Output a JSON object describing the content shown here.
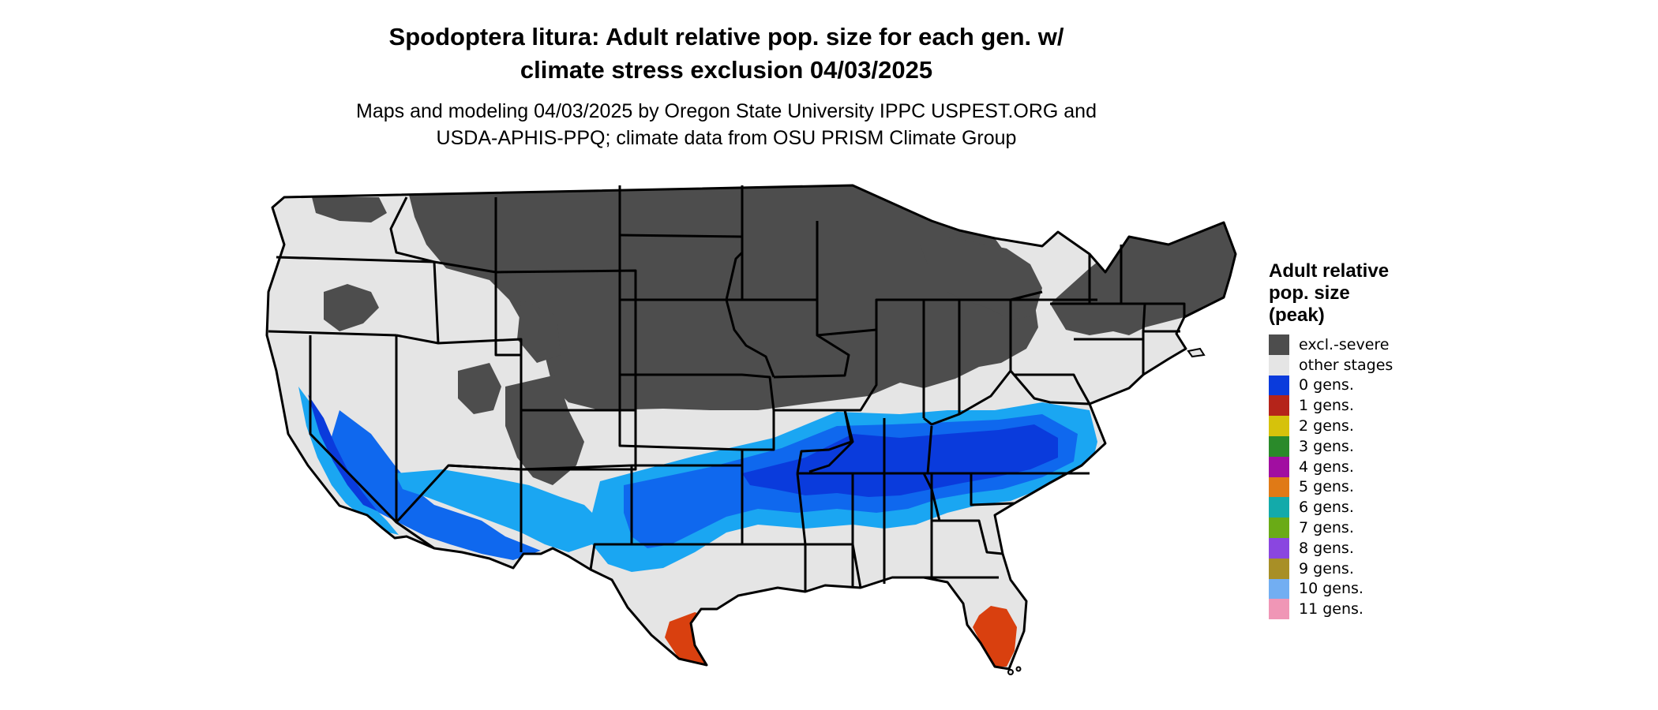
{
  "title_line1": "Spodoptera litura: Adult relative pop. size for each gen. w/",
  "title_line2": "climate stress exclusion 04/03/2025",
  "subtitle_line1": "Maps and modeling 04/03/2025 by Oregon State University IPPC USPEST.ORG and",
  "subtitle_line2": "USDA-APHIS-PPQ; climate data from OSU PRISM Climate Group",
  "legend": {
    "title_lines": [
      "Adult relative",
      "pop. size",
      "(peak)"
    ],
    "items": [
      {
        "label": "excl.-severe",
        "color": "#4d4d4d"
      },
      {
        "label": "other stages",
        "color": "#e5e5e5"
      },
      {
        "label": "0 gens.",
        "color": "#0a3bdc"
      },
      {
        "label": "1 gens.",
        "color": "#b5241a"
      },
      {
        "label": "2 gens.",
        "color": "#d6c20b"
      },
      {
        "label": "3 gens.",
        "color": "#2a8a2a"
      },
      {
        "label": "4 gens.",
        "color": "#a10ea1"
      },
      {
        "label": "5 gens.",
        "color": "#e07a16"
      },
      {
        "label": "6 gens.",
        "color": "#13aaaa"
      },
      {
        "label": "7 gens.",
        "color": "#6aab16"
      },
      {
        "label": "8 gens.",
        "color": "#8a46e0"
      },
      {
        "label": "9 gens.",
        "color": "#a88f26"
      },
      {
        "label": "10 gens.",
        "color": "#72aef2"
      },
      {
        "label": "11 gens.",
        "color": "#f096b6"
      }
    ]
  },
  "map_colors": {
    "excluded": "#4d4d4d",
    "other": "#e5e5e5",
    "blue_dark": "#0a3bdc",
    "blue_mid": "#0f68ee",
    "blue_light": "#1aa6f2",
    "red": "#d9400f",
    "border": "#000000"
  }
}
